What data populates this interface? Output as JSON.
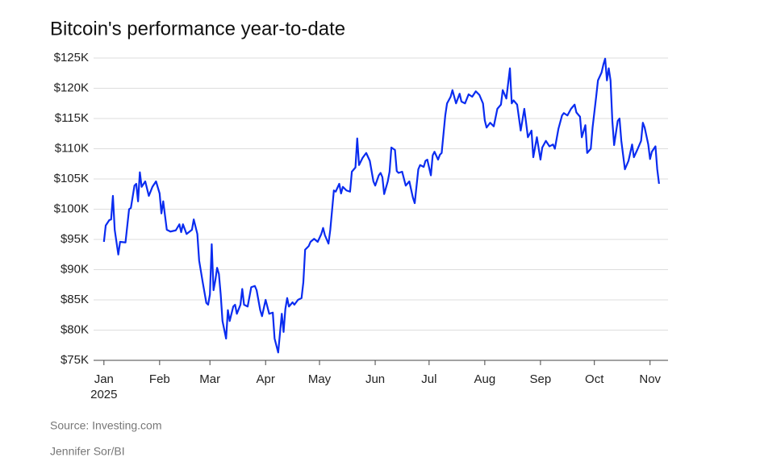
{
  "chart_data": {
    "type": "line",
    "title": "Bitcoin's performance year-to-date",
    "source": "Source: Investing.com",
    "credit": "Jennifer Sor/BI",
    "x_axis_year": "2025",
    "x": [
      0,
      1,
      3,
      4,
      5,
      6,
      8,
      9,
      12,
      14,
      15,
      17,
      18,
      19,
      20,
      21,
      23,
      25,
      27,
      29,
      31,
      32,
      33,
      35,
      37,
      40,
      42,
      43,
      44,
      46,
      49,
      50,
      52,
      53,
      55,
      57,
      58,
      59,
      60,
      61,
      62,
      63,
      64,
      65,
      66,
      68,
      69,
      70,
      72,
      73,
      74,
      76,
      77,
      78,
      80,
      82,
      84,
      85,
      87,
      88,
      90,
      92,
      94,
      95,
      97,
      99,
      100,
      101,
      102,
      103,
      105,
      106,
      108,
      110,
      111,
      112,
      114,
      115,
      117,
      119,
      121,
      122,
      123,
      125,
      126,
      128,
      129,
      131,
      132,
      133,
      135,
      137,
      138,
      140,
      141,
      142,
      144,
      146,
      148,
      150,
      151,
      153,
      154,
      155,
      156,
      158,
      159,
      160,
      162,
      163,
      164,
      166,
      168,
      170,
      172,
      173,
      175,
      176,
      178,
      179,
      180,
      182,
      183,
      184,
      186,
      187,
      188,
      190,
      191,
      193,
      194,
      196,
      198,
      199,
      201,
      203,
      205,
      207,
      209,
      211,
      212,
      213,
      215,
      217,
      219,
      221,
      222,
      224,
      226,
      227,
      228,
      230,
      232,
      234,
      235,
      236,
      238,
      239,
      241,
      243,
      244,
      246,
      248,
      250,
      251,
      253,
      255,
      256,
      258,
      260,
      262,
      263,
      265,
      266,
      268,
      269,
      271,
      272,
      274,
      275,
      277,
      278,
      279,
      280,
      281,
      282,
      283,
      284,
      286,
      287,
      288,
      290,
      292,
      294,
      295,
      297,
      299,
      300,
      301,
      303,
      304,
      305,
      307,
      308,
      309
    ],
    "series": [
      {
        "name": "Bitcoin",
        "color": "#0a2cf0",
        "values": [
          94600,
          97300,
          98200,
          98300,
          102200,
          96600,
          92500,
          94600,
          94500,
          100000,
          100200,
          103900,
          104200,
          101300,
          106100,
          103700,
          104600,
          102200,
          103700,
          104600,
          102600,
          99300,
          101300,
          96600,
          96300,
          96500,
          97500,
          96200,
          97500,
          95900,
          96600,
          98300,
          95900,
          91500,
          87900,
          84500,
          84200,
          85900,
          94200,
          86600,
          88200,
          90300,
          89300,
          85900,
          81500,
          78600,
          83300,
          81500,
          83900,
          84200,
          82700,
          84200,
          86800,
          84200,
          83900,
          87100,
          87300,
          86600,
          83300,
          82300,
          85000,
          82700,
          82900,
          78600,
          76300,
          82700,
          79700,
          83500,
          85300,
          83900,
          84600,
          84200,
          85000,
          85300,
          87900,
          93300,
          93900,
          94600,
          95100,
          94600,
          95900,
          96900,
          95700,
          94300,
          96600,
          103100,
          102900,
          104200,
          102600,
          103700,
          103100,
          102900,
          106200,
          106900,
          111700,
          107300,
          108500,
          109300,
          108000,
          104600,
          103900,
          105600,
          106000,
          105300,
          102500,
          104600,
          106200,
          110200,
          109800,
          106300,
          106000,
          106200,
          103900,
          104600,
          101900,
          101000,
          106600,
          107300,
          107000,
          108000,
          108200,
          105600,
          108900,
          109500,
          108200,
          109000,
          109300,
          115500,
          117500,
          118600,
          119700,
          117500,
          119100,
          117800,
          117500,
          119000,
          118600,
          119500,
          118900,
          117500,
          114700,
          113500,
          114300,
          113700,
          116600,
          117300,
          119700,
          118300,
          123300,
          117500,
          118000,
          117300,
          113000,
          116600,
          114300,
          111900,
          113000,
          108600,
          111900,
          108200,
          110200,
          111300,
          110400,
          110700,
          110000,
          113300,
          115500,
          115900,
          115500,
          116600,
          117300,
          116000,
          115300,
          111900,
          113900,
          109300,
          110000,
          113500,
          118600,
          121300,
          122600,
          123900,
          124900,
          121300,
          123300,
          121300,
          114600,
          110600,
          114600,
          115000,
          111300,
          106600,
          108000,
          110700,
          108600,
          109900,
          111300,
          114300,
          113500,
          110700,
          108300,
          109500,
          110400,
          106600,
          104200
        ]
      }
    ],
    "xlim": [
      -8,
      314
    ],
    "xticks": [
      {
        "value": 0,
        "label": "Jan"
      },
      {
        "value": 31,
        "label": "Feb"
      },
      {
        "value": 59,
        "label": "Mar"
      },
      {
        "value": 90,
        "label": "Apr"
      },
      {
        "value": 120,
        "label": "May"
      },
      {
        "value": 151,
        "label": "Jun"
      },
      {
        "value": 181,
        "label": "Jul"
      },
      {
        "value": 212,
        "label": "Aug"
      },
      {
        "value": 243,
        "label": "Sep"
      },
      {
        "value": 273,
        "label": "Oct"
      },
      {
        "value": 304,
        "label": "Nov"
      }
    ],
    "ylim": [
      75000,
      125000
    ],
    "yticks": [
      {
        "value": 75000,
        "label": "$75K"
      },
      {
        "value": 80000,
        "label": "$80K"
      },
      {
        "value": 85000,
        "label": "$85K"
      },
      {
        "value": 90000,
        "label": "$90K"
      },
      {
        "value": 95000,
        "label": "$95K"
      },
      {
        "value": 100000,
        "label": "$100K"
      },
      {
        "value": 105000,
        "label": "$105K"
      },
      {
        "value": 110000,
        "label": "$110K"
      },
      {
        "value": 115000,
        "label": "$115K"
      },
      {
        "value": 120000,
        "label": "$120K"
      },
      {
        "value": 125000,
        "label": "$125K"
      }
    ],
    "grid": true
  }
}
